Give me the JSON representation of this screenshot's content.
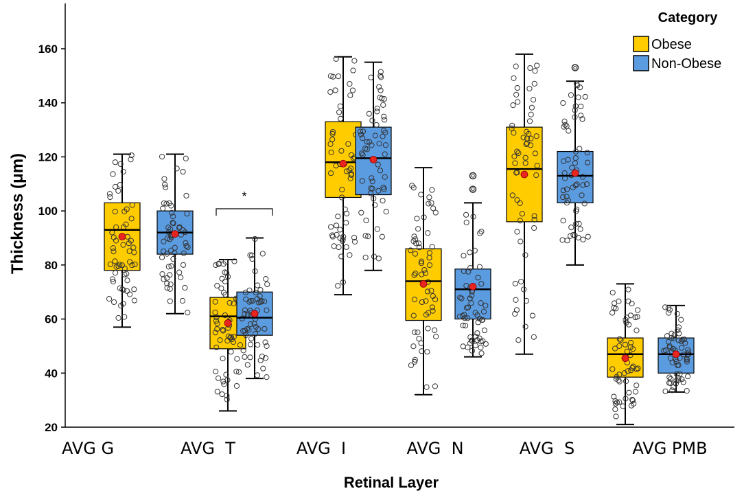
{
  "chart_data": {
    "type": "boxplot",
    "title": "",
    "xlabel": "Retinal Layer",
    "ylabel": "Thickness (μm)",
    "ylim": [
      20,
      175
    ],
    "yticks": [
      20,
      40,
      60,
      80,
      100,
      120,
      140,
      160
    ],
    "categories": [
      "AVG G",
      "AVG  T",
      "AVG  I",
      "AVG  N",
      "AVG  S",
      "AVG PMB"
    ],
    "legend": {
      "title": "Category",
      "position": "top-right"
    },
    "series": [
      {
        "name": "Obese",
        "color": "#FFCC00",
        "boxes": [
          {
            "min": 57,
            "q1": 78,
            "median": 93,
            "q3": 103,
            "max": 121,
            "mean": 90.5
          },
          {
            "min": 26,
            "q1": 49,
            "median": 61,
            "q3": 68,
            "max": 82,
            "mean": 58.5
          },
          {
            "min": 69,
            "q1": 105,
            "median": 118,
            "q3": 133,
            "max": 157,
            "mean": 117.5
          },
          {
            "min": 32,
            "q1": 59.5,
            "median": 74,
            "q3": 86,
            "max": 116,
            "mean": 73
          },
          {
            "min": 47,
            "q1": 96,
            "median": 115.5,
            "q3": 131,
            "max": 158,
            "mean": 113.5
          },
          {
            "min": 21,
            "q1": 38.5,
            "median": 47,
            "q3": 53,
            "max": 73,
            "mean": 45.5
          }
        ]
      },
      {
        "name": "Non-Obese",
        "color": "#5B9BE0",
        "boxes": [
          {
            "min": 62,
            "q1": 84,
            "median": 92,
            "q3": 100,
            "max": 121,
            "mean": 91.5
          },
          {
            "min": 38,
            "q1": 54,
            "median": 60.5,
            "q3": 70,
            "max": 90,
            "mean": 62
          },
          {
            "min": 78,
            "q1": 106,
            "median": 119.5,
            "q3": 131,
            "max": 155,
            "mean": 119
          },
          {
            "min": 46,
            "q1": 60,
            "median": 71,
            "q3": 78.5,
            "max": 103,
            "mean": 72,
            "outliers": [
              108,
              113
            ]
          },
          {
            "min": 80,
            "q1": 103,
            "median": 113,
            "q3": 122,
            "max": 148,
            "mean": 114,
            "outliers": [
              153
            ]
          },
          {
            "min": 33,
            "q1": 40,
            "median": 47,
            "q3": 53,
            "max": 65,
            "mean": 47
          }
        ]
      }
    ],
    "annotations": [
      {
        "text": "*",
        "between_category": "AVG  T"
      }
    ]
  }
}
